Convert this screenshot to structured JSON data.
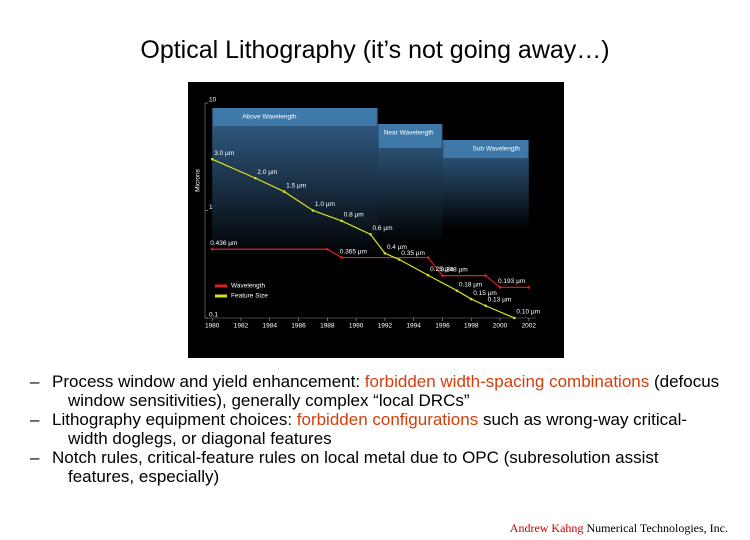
{
  "title": "Optical Lithography (it’s not going away…)",
  "chart_data": {
    "type": "line",
    "y_label": "Microns",
    "regions": [
      {
        "label": "Above Wavelength",
        "from": 1980,
        "to": 1991.5
      },
      {
        "label": "Near Wavelength",
        "from": 1991.5,
        "to": 1996
      },
      {
        "label": "Sub Wavelength",
        "from": 1996,
        "to": 2002
      }
    ],
    "series": [
      {
        "name": "Wavelength",
        "color": "#e02020",
        "x": [
          1980,
          1988,
          1989,
          1995,
          1996,
          1999,
          2000,
          2002
        ],
        "values": [
          0.436,
          0.436,
          0.365,
          0.365,
          0.248,
          0.248,
          0.193,
          0.193
        ],
        "value_labels": [
          "0.436 µm",
          null,
          "0.365 µm",
          null,
          "0.248 µm",
          null,
          "0.193 µm",
          null
        ]
      },
      {
        "name": "Feature Size",
        "color": "#d8e020",
        "x": [
          1980,
          1983,
          1985,
          1987,
          1989,
          1991,
          1992,
          1993,
          1995,
          1997,
          1998,
          1999,
          2001
        ],
        "values": [
          3.0,
          2.0,
          1.5,
          1.0,
          0.8,
          0.6,
          0.4,
          0.35,
          0.25,
          0.18,
          0.15,
          0.13,
          0.1
        ],
        "value_labels": [
          "3.0 µm",
          "2.0 µm",
          "1.5 µm",
          "1.0 µm",
          "0.8 µm",
          "0.6 µm",
          "0.4 µm",
          "0.35 µm",
          "0.25 µm",
          "0.18 µm",
          "0.15 µm",
          "0.13 µm",
          "0.10 µm"
        ]
      }
    ],
    "xlim": [
      1979.5,
      2002.5
    ],
    "xticks": [
      1980,
      1982,
      1984,
      1986,
      1988,
      1990,
      1992,
      1994,
      1996,
      1998,
      2000,
      2002
    ],
    "ylim": [
      0.1,
      10
    ],
    "yticks": [
      0.1,
      1,
      10
    ],
    "log_y": true,
    "legend": "lower left"
  },
  "bullets": [
    [
      {
        "text": "Process window and yield enhancement:  "
      },
      {
        "text": "forbidden width-spacing combinations",
        "highlight": true
      },
      {
        "text": " (defocus window sensitivities), generally complex “local DRCs”"
      }
    ],
    [
      {
        "text": "Lithography equipment choices:  "
      },
      {
        "text": "forbidden configurations",
        "highlight": true
      },
      {
        "text": " such as wrong-way critical-width doglegs, or diagonal features"
      }
    ],
    [
      {
        "text": "Notch rules, critical-feature rules on local metal due to OPC (subresolution assist features, especially)"
      }
    ]
  ],
  "footer": [
    "Andrew Kahng",
    "Numerical Technologies, Inc."
  ]
}
